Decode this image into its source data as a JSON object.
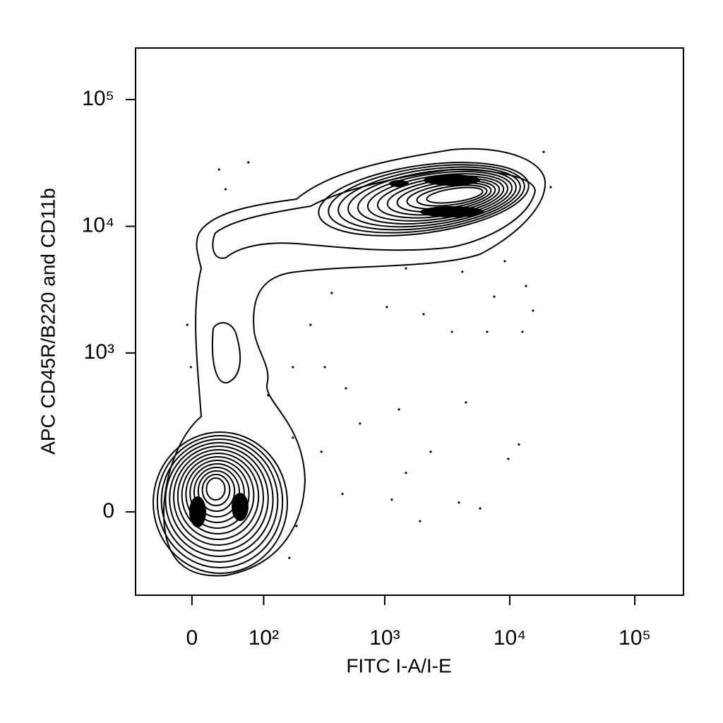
{
  "chart_data": {
    "type": "scatter",
    "xlabel": "FITC I-A/I-E",
    "ylabel": "APC CD45R/B220 and CD11b",
    "xscale": "biexponential",
    "yscale": "biexponential",
    "xlim": [
      -71,
      245000
    ],
    "ylim": [
      -242,
      254800
    ],
    "xticks": [
      0,
      {
        "value": 100,
        "label": "10²"
      },
      {
        "value": 1000,
        "label": "10³"
      },
      {
        "value": 10000,
        "label": "10⁴"
      },
      {
        "value": 100000,
        "label": "10⁵"
      }
    ],
    "yticks": [
      0,
      {
        "value": 1000,
        "label": "10³"
      },
      {
        "value": 10000,
        "label": "10⁴"
      },
      {
        "value": 100000,
        "label": "10⁵"
      }
    ],
    "color": "#000000",
    "x": [
      1478,
      1040,
      2047,
      3444,
      6595,
      7515,
      12640,
      15350,
      375,
      252,
      488,
      330,
      180,
      1299,
      4463,
      9745,
      11845,
      2330,
      633,
      309,
      1478,
      5795,
      3921,
      1916,
      1139,
      457,
      193,
      168,
      -5,
      -1,
      30,
      71,
      38,
      13490,
      4180,
      18660,
      21250,
      9131,
      180,
      110
    ],
    "y": [
      4660,
      2307,
      2027,
      1471,
      1471,
      2789,
      1471,
      2162,
      2979,
      1669,
      522,
      772,
      772,
      351,
      401,
      125,
      174,
      148,
      267,
      148,
      86,
      7,
      19,
      -19,
      25,
      37,
      -29,
      -105,
      1669,
      772,
      28070,
      31920,
      19600,
      3380,
      4380,
      38640,
      20380,
      5310,
      201,
      458
    ]
  }
}
